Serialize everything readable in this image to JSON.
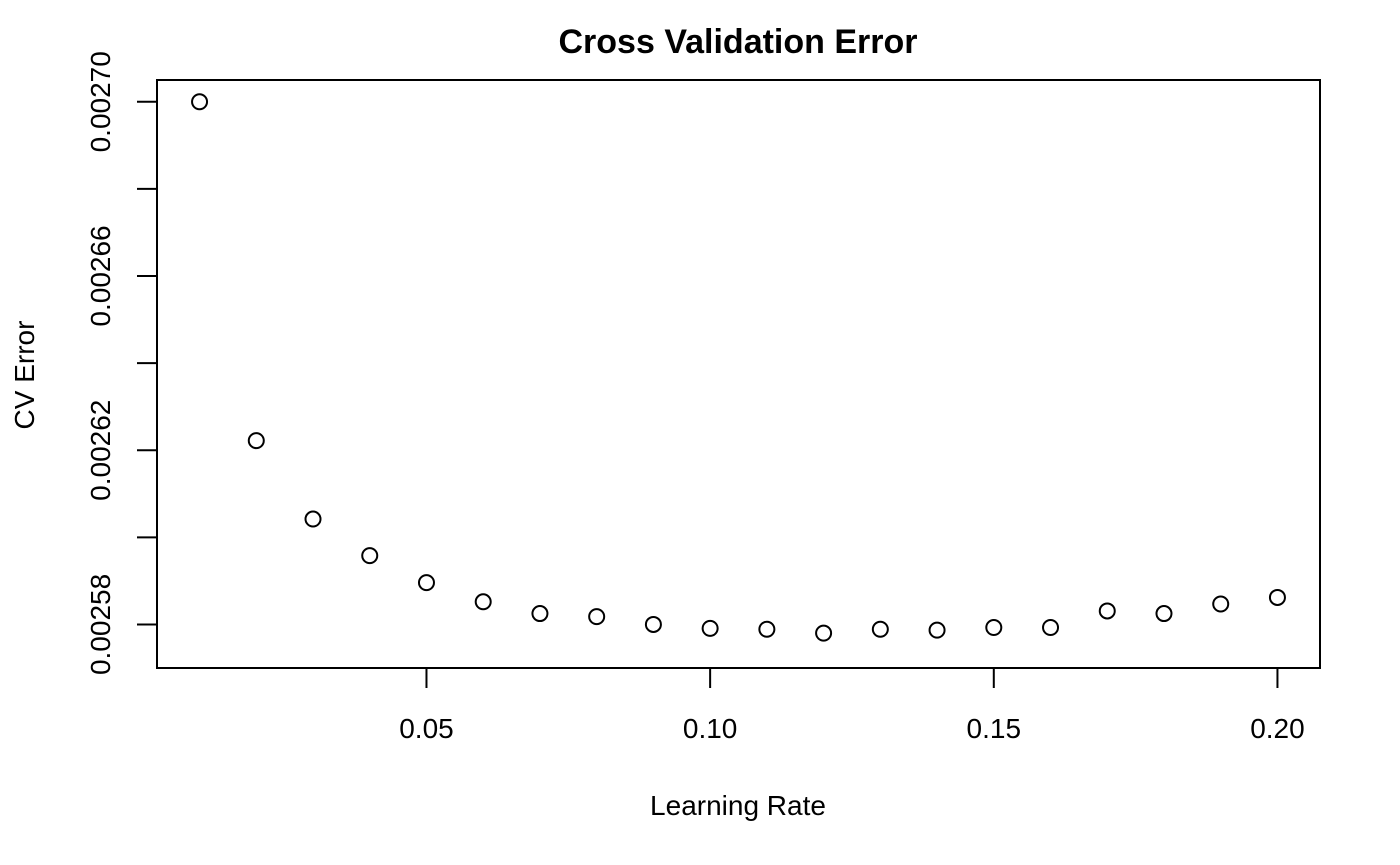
{
  "chart_data": {
    "type": "scatter",
    "title": "Cross Validation Error",
    "xlabel": "Learning Rate",
    "ylabel": "CV Error",
    "x": [
      0.01,
      0.02,
      0.03,
      0.04,
      0.05,
      0.06,
      0.07,
      0.08,
      0.09,
      0.1,
      0.11,
      0.12,
      0.13,
      0.14,
      0.15,
      0.16,
      0.17,
      0.18,
      0.19,
      0.2
    ],
    "y": [
      0.0027,
      0.0026222,
      0.0026042,
      0.0025958,
      0.0025896,
      0.0025852,
      0.0025825,
      0.0025818,
      0.00258,
      0.0025791,
      0.0025789,
      0.002578,
      0.0025789,
      0.0025787,
      0.0025793,
      0.0025793,
      0.0025831,
      0.0025825,
      0.0025847,
      0.0025862
    ],
    "xlim": [
      0.0025,
      0.2075
    ],
    "ylim": [
      0.00257,
      0.002705
    ],
    "xticks": [
      0.05,
      0.1,
      0.15,
      0.2
    ],
    "xtick_labels": [
      "0.05",
      "0.10",
      "0.15",
      "0.20"
    ],
    "yticks": [
      0.00258,
      0.0026,
      0.00262,
      0.00264,
      0.00266,
      0.00268,
      0.0027
    ],
    "ytick_labels": [
      "0.00258",
      "",
      "0.00262",
      "",
      "0.00266",
      "",
      "0.00270"
    ],
    "grid": false,
    "marker": "open-circle"
  }
}
